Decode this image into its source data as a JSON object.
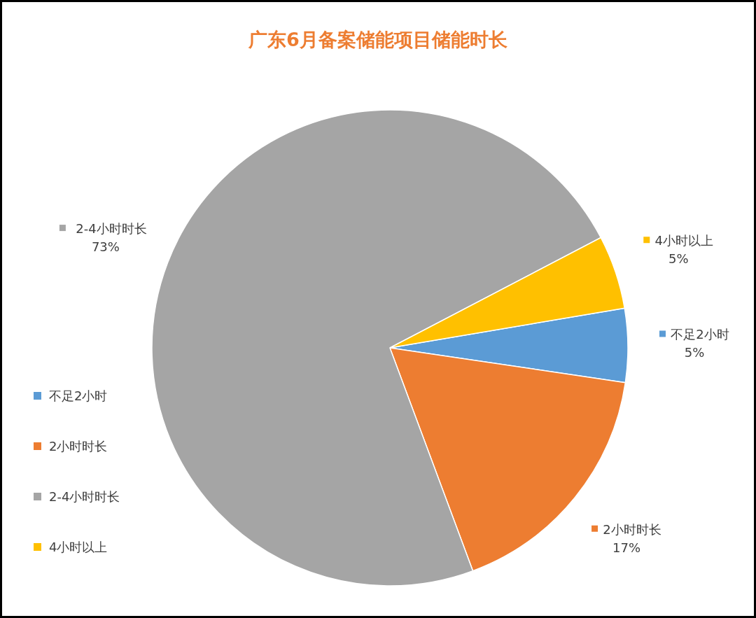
{
  "chart_data": {
    "type": "pie",
    "title": "广东6月备案储能项目储能时长",
    "categories": [
      "不足2小时",
      "2小时时长",
      "2-4小时时长",
      "4小时以上"
    ],
    "values": [
      5,
      17,
      73,
      5
    ],
    "colors": [
      "#5b9bd5",
      "#ed7d31",
      "#a5a5a5",
      "#ffc000"
    ],
    "value_labels": [
      "5%",
      "17%",
      "73%",
      "5%"
    ],
    "legend": "left"
  }
}
